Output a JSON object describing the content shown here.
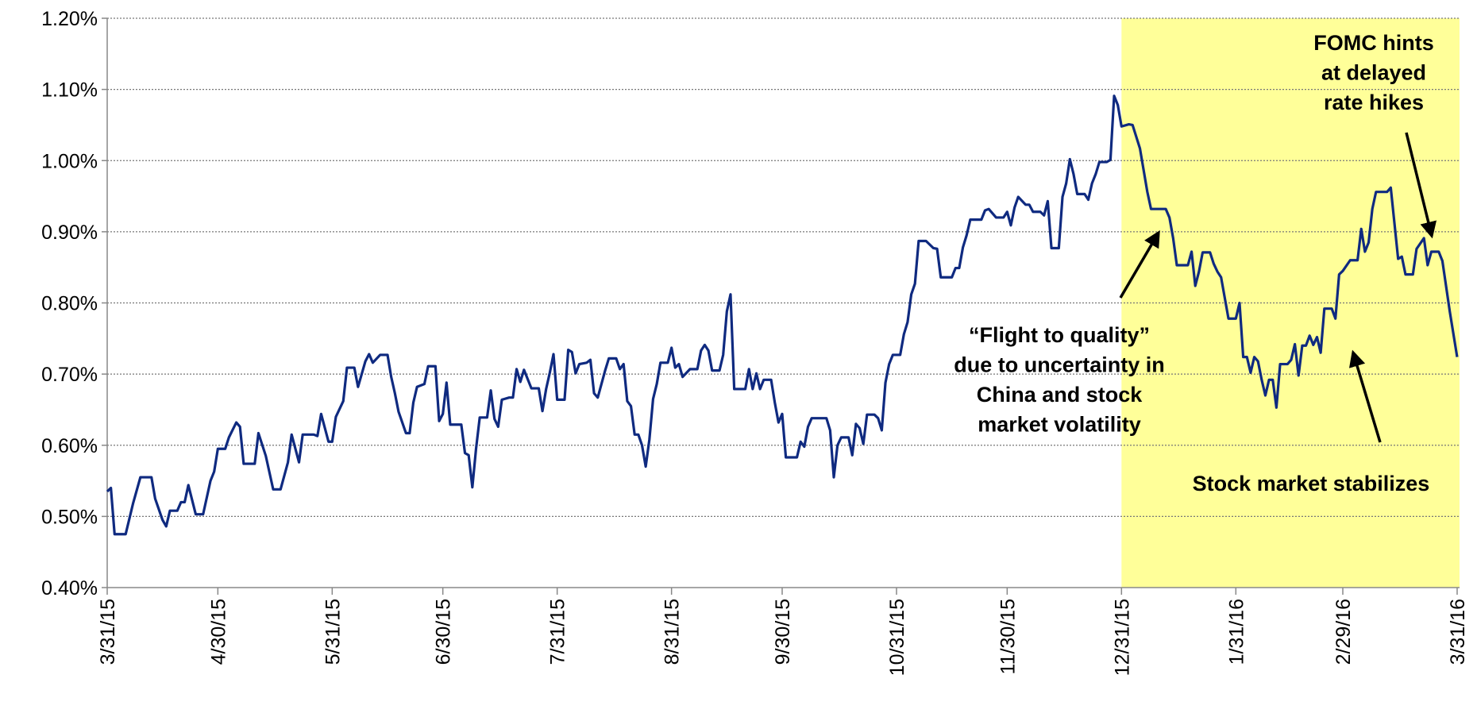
{
  "chart_data": {
    "type": "line",
    "color": "#0f2a80",
    "grid": true,
    "highlight": {
      "from": "12/31/15",
      "to": "3/31/16",
      "color": "#ffff99"
    },
    "xlim": [
      "3/31/15",
      "3/31/16"
    ],
    "xticks": [
      "3/31/15",
      "4/30/15",
      "5/31/15",
      "6/30/15",
      "7/31/15",
      "8/31/15",
      "9/30/15",
      "10/31/15",
      "11/30/15",
      "12/31/15",
      "1/31/16",
      "2/29/16",
      "3/31/16"
    ],
    "ylim": [
      0.4,
      1.2
    ],
    "yticks": [
      {
        "value": 0.4,
        "label": "0.40%"
      },
      {
        "value": 0.5,
        "label": "0.50%"
      },
      {
        "value": 0.6,
        "label": "0.60%"
      },
      {
        "value": 0.7,
        "label": "0.70%"
      },
      {
        "value": 0.8,
        "label": "0.80%"
      },
      {
        "value": 0.9,
        "label": "0.90%"
      },
      {
        "value": 1.0,
        "label": "1.00%"
      },
      {
        "value": 1.1,
        "label": "1.10%"
      },
      {
        "value": 1.2,
        "label": "1.20%"
      }
    ],
    "annotations": [
      {
        "lines": [
          "“Flight to quality”",
          "due to uncertainty in",
          "China and stock",
          "market volatility"
        ]
      },
      {
        "lines": [
          "FOMC hints",
          "at delayed",
          "rate hikes"
        ]
      },
      {
        "lines": [
          "Stock market stabilizes"
        ]
      }
    ],
    "x": [
      "3/31/15",
      "4/1/15",
      "4/2/15",
      "4/5/15",
      "4/7/15",
      "4/9/15",
      "4/12/15",
      "4/13/15",
      "4/15/15",
      "4/16/15",
      "4/17/15",
      "4/19/15",
      "4/20/15",
      "4/21/15",
      "4/22/15",
      "4/24/15",
      "4/26/15",
      "4/28/15",
      "4/29/15",
      "4/30/15",
      "5/2/15",
      "5/3/15",
      "5/5/15",
      "5/6/15",
      "5/7/15",
      "5/10/15",
      "5/11/15",
      "5/13/15",
      "5/15/15",
      "5/17/15",
      "5/19/15",
      "5/20/15",
      "5/22/15",
      "5/23/15",
      "5/26/15",
      "5/27/15",
      "5/28/15",
      "5/30/15",
      "5/31/15",
      "6/1/15",
      "6/3/15",
      "6/4/15",
      "6/6/15",
      "6/7/15",
      "6/9/15",
      "6/10/15",
      "6/11/15",
      "6/13/15",
      "6/15/15",
      "6/16/15",
      "6/17/15",
      "6/18/15",
      "6/20/15",
      "6/21/15",
      "6/22/15",
      "6/23/15",
      "6/25/15",
      "6/26/15",
      "6/28/15",
      "6/29/15",
      "6/30/15",
      "7/1/15",
      "7/2/15",
      "7/5/15",
      "7/6/15",
      "7/7/15",
      "7/8/15",
      "7/9/15",
      "7/10/15",
      "7/12/15",
      "7/13/15",
      "7/14/15",
      "7/15/15",
      "7/16/15",
      "7/18/15",
      "7/19/15",
      "7/20/15",
      "7/21/15",
      "7/22/15",
      "7/24/15",
      "7/26/15",
      "7/27/15",
      "7/28/15",
      "7/29/15",
      "7/30/15",
      "7/31/15",
      "8/2/15",
      "8/3/15",
      "8/4/15",
      "8/5/15",
      "8/6/15",
      "8/8/15",
      "8/9/15",
      "8/10/15",
      "8/11/15",
      "8/13/15",
      "8/14/15",
      "8/16/15",
      "8/17/15",
      "8/18/15",
      "8/19/15",
      "8/20/15",
      "8/21/15",
      "8/22/15",
      "8/23/15",
      "8/24/15",
      "8/25/15",
      "8/26/15",
      "8/27/15",
      "8/28/15",
      "8/30/15",
      "8/31/15",
      "9/1/15",
      "9/2/15",
      "9/3/15",
      "9/5/15",
      "9/7/15",
      "9/8/15",
      "9/9/15",
      "9/10/15",
      "9/11/15",
      "9/13/15",
      "9/14/15",
      "9/15/15",
      "9/16/15",
      "9/17/15",
      "9/20/15",
      "9/21/15",
      "9/22/15",
      "9/23/15",
      "9/24/15",
      "9/25/15",
      "9/27/15",
      "9/28/15",
      "9/29/15",
      "9/30/15",
      "10/1/15",
      "10/4/15",
      "10/5/15",
      "10/6/15",
      "10/7/15",
      "10/8/15",
      "10/12/15",
      "10/13/15",
      "10/14/15",
      "10/15/15",
      "10/16/15",
      "10/18/15",
      "10/19/15",
      "10/20/15",
      "10/21/15",
      "10/22/15",
      "10/23/15",
      "10/25/15",
      "10/26/15",
      "10/27/15",
      "10/28/15",
      "10/29/15",
      "10/30/15",
      "11/1/15",
      "11/2/15",
      "11/3/15",
      "11/4/15",
      "11/5/15",
      "11/6/15",
      "11/8/15",
      "11/10/15",
      "11/11/15",
      "11/12/15",
      "11/15/15",
      "11/16/15",
      "11/17/15",
      "11/18/15",
      "11/19/15",
      "11/20/15",
      "11/23/15",
      "11/24/15",
      "11/25/15",
      "11/27/15",
      "11/29/15",
      "11/30/15",
      "12/1/15",
      "12/2/15",
      "12/3/15",
      "12/5/15",
      "12/6/15",
      "12/7/15",
      "12/9/15",
      "12/10/15",
      "12/11/15",
      "12/12/15",
      "12/14/15",
      "12/15/15",
      "12/16/15",
      "12/17/15",
      "12/18/15",
      "12/19/15",
      "12/21/15",
      "12/22/15",
      "12/23/15",
      "12/24/15",
      "12/25/15",
      "12/27/15",
      "12/28/15",
      "12/29/15",
      "12/30/15",
      "12/31/15",
      "1/2/16",
      "1/3/16",
      "1/5/16",
      "1/7/16",
      "1/8/16",
      "1/12/16",
      "1/13/16",
      "1/14/16",
      "1/15/16",
      "1/18/16",
      "1/19/16",
      "1/20/16",
      "1/21/16",
      "1/22/16",
      "1/24/16",
      "1/25/16",
      "1/26/16",
      "1/27/16",
      "1/29/16",
      "1/31/16",
      "2/1/16",
      "2/2/16",
      "2/3/16",
      "2/4/16",
      "2/5/16",
      "2/6/16",
      "2/7/16",
      "2/8/16",
      "2/9/16",
      "2/10/16",
      "2/11/16",
      "2/12/16",
      "2/14/16",
      "2/15/16",
      "2/16/16",
      "2/17/16",
      "2/18/16",
      "2/19/16",
      "2/20/16",
      "2/21/16",
      "2/22/16",
      "2/23/16",
      "2/24/16",
      "2/26/16",
      "2/27/16",
      "2/28/16",
      "2/29/16",
      "3/2/16",
      "3/4/16",
      "3/5/16",
      "3/6/16",
      "3/7/16",
      "3/8/16",
      "3/9/16",
      "3/12/16",
      "3/13/16",
      "3/15/16",
      "3/16/16",
      "3/17/16",
      "3/19/16",
      "3/20/16",
      "3/22/16",
      "3/23/16",
      "3/24/16",
      "3/26/16",
      "3/27/16",
      "3/29/16",
      "3/31/16"
    ],
    "values": [
      0.535,
      0.54,
      0.475,
      0.475,
      0.518,
      0.555,
      0.555,
      0.525,
      0.495,
      0.486,
      0.508,
      0.508,
      0.52,
      0.52,
      0.544,
      0.503,
      0.503,
      0.55,
      0.563,
      0.595,
      0.595,
      0.611,
      0.632,
      0.626,
      0.574,
      0.574,
      0.617,
      0.585,
      0.538,
      0.538,
      0.576,
      0.615,
      0.576,
      0.615,
      0.615,
      0.613,
      0.644,
      0.605,
      0.605,
      0.64,
      0.662,
      0.709,
      0.709,
      0.682,
      0.718,
      0.728,
      0.716,
      0.727,
      0.727,
      0.696,
      0.673,
      0.647,
      0.617,
      0.617,
      0.66,
      0.682,
      0.686,
      0.711,
      0.711,
      0.634,
      0.644,
      0.688,
      0.629,
      0.629,
      0.589,
      0.586,
      0.541,
      0.595,
      0.639,
      0.639,
      0.677,
      0.637,
      0.626,
      0.664,
      0.667,
      0.667,
      0.707,
      0.689,
      0.706,
      0.68,
      0.68,
      0.648,
      0.679,
      0.702,
      0.728,
      0.664,
      0.664,
      0.734,
      0.731,
      0.701,
      0.714,
      0.716,
      0.72,
      0.673,
      0.667,
      0.705,
      0.722,
      0.722,
      0.707,
      0.714,
      0.662,
      0.655,
      0.615,
      0.615,
      0.6,
      0.57,
      0.608,
      0.665,
      0.686,
      0.716,
      0.716,
      0.737,
      0.709,
      0.714,
      0.696,
      0.707,
      0.707,
      0.733,
      0.741,
      0.733,
      0.705,
      0.705,
      0.727,
      0.788,
      0.812,
      0.679,
      0.679,
      0.707,
      0.679,
      0.701,
      0.679,
      0.692,
      0.692,
      0.66,
      0.632,
      0.644,
      0.583,
      0.583,
      0.605,
      0.598,
      0.626,
      0.638,
      0.638,
      0.621,
      0.555,
      0.6,
      0.611,
      0.611,
      0.586,
      0.63,
      0.624,
      0.602,
      0.643,
      0.643,
      0.638,
      0.621,
      0.688,
      0.714,
      0.727,
      0.727,
      0.756,
      0.773,
      0.812,
      0.827,
      0.887,
      0.887,
      0.877,
      0.876,
      0.836,
      0.836,
      0.849,
      0.849,
      0.878,
      0.895,
      0.917,
      0.917,
      0.93,
      0.932,
      0.92,
      0.92,
      0.928,
      0.909,
      0.934,
      0.949,
      0.938,
      0.938,
      0.928,
      0.928,
      0.923,
      0.943,
      0.877,
      0.877,
      0.949,
      0.968,
      1.002,
      0.981,
      0.953,
      0.953,
      0.945,
      0.968,
      0.981,
      0.998,
      0.998,
      1.001,
      1.091,
      1.078,
      1.048,
      1.051,
      1.05,
      1.017,
      0.956,
      0.932,
      0.932,
      0.92,
      0.891,
      0.853,
      0.853,
      0.872,
      0.824,
      0.844,
      0.871,
      0.871,
      0.855,
      0.844,
      0.836,
      0.778,
      0.778,
      0.8,
      0.724,
      0.724,
      0.702,
      0.724,
      0.718,
      0.692,
      0.67,
      0.692,
      0.692,
      0.653,
      0.714,
      0.714,
      0.72,
      0.742,
      0.698,
      0.74,
      0.74,
      0.754,
      0.741,
      0.752,
      0.73,
      0.792,
      0.792,
      0.778,
      0.84,
      0.845,
      0.86,
      0.86,
      0.904,
      0.872,
      0.885,
      0.932,
      0.956,
      0.956,
      0.962,
      0.862,
      0.865,
      0.84,
      0.84,
      0.876,
      0.891,
      0.853,
      0.872,
      0.872,
      0.859,
      0.788,
      0.724
    ]
  }
}
